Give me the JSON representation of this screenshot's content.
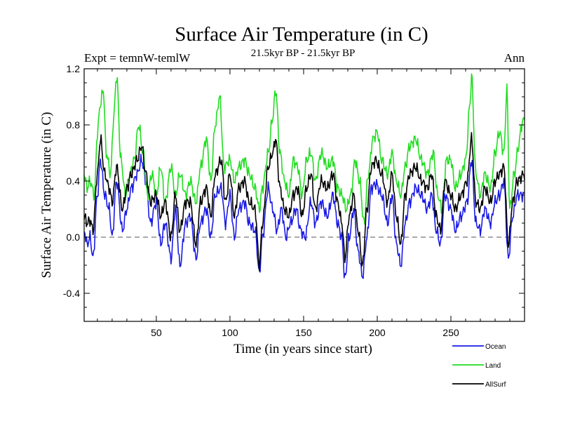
{
  "chart_data": {
    "type": "line",
    "title": "Surface Air Temperature (in C)",
    "subtitle_left": "Expt = temnW-temlW",
    "subtitle_center": "21.5kyr BP - 21.5kyr BP",
    "subtitle_right": "Ann",
    "xlabel": "Time (in years since start)",
    "ylabel": "Surface Air Temperature (in C)",
    "xlim": [
      1,
      300
    ],
    "ylim": [
      -0.6,
      1.2
    ],
    "x_ticks": [
      50,
      100,
      150,
      200,
      250
    ],
    "x_tick_labels": [
      "50",
      "100",
      "150",
      "200",
      "250"
    ],
    "y_ticks": [
      -0.4,
      0.0,
      0.4,
      0.8,
      1.2
    ],
    "y_tick_labels": [
      "-0.4",
      "0.0",
      "0.4",
      "0.8",
      "1.2"
    ],
    "reference_line": {
      "y": 0.0,
      "style": "dashed"
    },
    "legend_position": "bottom-right",
    "series": [
      {
        "name": "Ocean",
        "color": "#1a1ae6",
        "anchors": [
          [
            1,
            0.05
          ],
          [
            3,
            -0.05
          ],
          [
            5,
            0.0
          ],
          [
            7,
            -0.15
          ],
          [
            10,
            0.3
          ],
          [
            12,
            0.55
          ],
          [
            15,
            0.3
          ],
          [
            18,
            0.2
          ],
          [
            20,
            0.0
          ],
          [
            23,
            0.4
          ],
          [
            27,
            0.05
          ],
          [
            30,
            0.2
          ],
          [
            33,
            0.35
          ],
          [
            37,
            0.45
          ],
          [
            40,
            0.55
          ],
          [
            43,
            0.4
          ],
          [
            46,
            0.1
          ],
          [
            50,
            0.25
          ],
          [
            53,
            -0.05
          ],
          [
            56,
            0.1
          ],
          [
            60,
            -0.15
          ],
          [
            63,
            0.2
          ],
          [
            66,
            -0.2
          ],
          [
            70,
            0.1
          ],
          [
            73,
            0.15
          ],
          [
            77,
            -0.15
          ],
          [
            80,
            0.1
          ],
          [
            84,
            0.2
          ],
          [
            87,
            0.0
          ],
          [
            90,
            0.3
          ],
          [
            94,
            0.35
          ],
          [
            97,
            0.1
          ],
          [
            100,
            0.3
          ],
          [
            103,
            0.0
          ],
          [
            106,
            0.2
          ],
          [
            110,
            0.25
          ],
          [
            113,
            0.1
          ],
          [
            117,
            0.05
          ],
          [
            120,
            -0.25
          ],
          [
            122,
            0.0
          ],
          [
            126,
            0.35
          ],
          [
            129,
            0.2
          ],
          [
            132,
            0.05
          ],
          [
            135,
            0.2
          ],
          [
            138,
            0.0
          ],
          [
            141,
            0.1
          ],
          [
            145,
            0.2
          ],
          [
            148,
            0.05
          ],
          [
            151,
            0.0
          ],
          [
            155,
            0.25
          ],
          [
            158,
            0.1
          ],
          [
            162,
            0.25
          ],
          [
            166,
            0.15
          ],
          [
            170,
            0.3
          ],
          [
            173,
            0.1
          ],
          [
            176,
            0.0
          ],
          [
            178,
            -0.3
          ],
          [
            181,
            0.0
          ],
          [
            184,
            0.2
          ],
          [
            187,
            -0.1
          ],
          [
            190,
            -0.28
          ],
          [
            193,
            0.0
          ],
          [
            196,
            0.35
          ],
          [
            199,
            0.38
          ],
          [
            203,
            0.3
          ],
          [
            207,
            0.1
          ],
          [
            210,
            0.3
          ],
          [
            213,
            -0.05
          ],
          [
            216,
            -0.2
          ],
          [
            219,
            0.1
          ],
          [
            222,
            0.25
          ],
          [
            226,
            0.35
          ],
          [
            230,
            0.3
          ],
          [
            234,
            0.2
          ],
          [
            237,
            0.3
          ],
          [
            240,
            0.05
          ],
          [
            243,
            -0.05
          ],
          [
            246,
            0.3
          ],
          [
            250,
            0.2
          ],
          [
            253,
            0.05
          ],
          [
            257,
            0.15
          ],
          [
            261,
            0.25
          ],
          [
            264,
            0.55
          ],
          [
            267,
            0.1
          ],
          [
            270,
            0.05
          ],
          [
            273,
            0.2
          ],
          [
            277,
            0.1
          ],
          [
            280,
            0.25
          ],
          [
            283,
            0.3
          ],
          [
            286,
            0.4
          ],
          [
            289,
            -0.15
          ],
          [
            292,
            0.15
          ],
          [
            295,
            0.3
          ],
          [
            300,
            0.3
          ]
        ]
      },
      {
        "name": "Land",
        "color": "#22dd22",
        "anchors": [
          [
            1,
            0.45
          ],
          [
            3,
            0.35
          ],
          [
            5,
            0.4
          ],
          [
            8,
            0.3
          ],
          [
            10,
            0.75
          ],
          [
            12,
            0.95
          ],
          [
            14,
            1.05
          ],
          [
            16,
            0.6
          ],
          [
            19,
            0.45
          ],
          [
            21,
            0.85
          ],
          [
            23,
            1.15
          ],
          [
            26,
            0.55
          ],
          [
            29,
            0.3
          ],
          [
            32,
            0.45
          ],
          [
            35,
            0.55
          ],
          [
            38,
            0.8
          ],
          [
            41,
            0.6
          ],
          [
            44,
            0.3
          ],
          [
            47,
            0.45
          ],
          [
            50,
            0.3
          ],
          [
            53,
            0.5
          ],
          [
            56,
            0.25
          ],
          [
            60,
            0.5
          ],
          [
            63,
            0.3
          ],
          [
            66,
            0.45
          ],
          [
            70,
            0.3
          ],
          [
            73,
            0.4
          ],
          [
            77,
            0.25
          ],
          [
            80,
            0.5
          ],
          [
            84,
            0.7
          ],
          [
            87,
            0.4
          ],
          [
            90,
            0.8
          ],
          [
            93,
            1.0
          ],
          [
            96,
            0.5
          ],
          [
            100,
            0.55
          ],
          [
            103,
            0.4
          ],
          [
            106,
            0.5
          ],
          [
            110,
            0.55
          ],
          [
            113,
            0.45
          ],
          [
            117,
            0.35
          ],
          [
            120,
            0.2
          ],
          [
            122,
            0.35
          ],
          [
            126,
            0.6
          ],
          [
            129,
            0.85
          ],
          [
            131,
            1.05
          ],
          [
            134,
            0.6
          ],
          [
            137,
            0.4
          ],
          [
            140,
            0.3
          ],
          [
            143,
            0.55
          ],
          [
            146,
            0.5
          ],
          [
            149,
            0.3
          ],
          [
            152,
            0.55
          ],
          [
            155,
            0.6
          ],
          [
            158,
            0.4
          ],
          [
            162,
            0.6
          ],
          [
            166,
            0.5
          ],
          [
            170,
            0.55
          ],
          [
            173,
            0.35
          ],
          [
            176,
            0.3
          ],
          [
            179,
            0.2
          ],
          [
            182,
            0.3
          ],
          [
            185,
            0.55
          ],
          [
            188,
            0.4
          ],
          [
            191,
            0.1
          ],
          [
            194,
            0.45
          ],
          [
            197,
            0.7
          ],
          [
            200,
            0.75
          ],
          [
            203,
            0.55
          ],
          [
            207,
            0.45
          ],
          [
            210,
            0.6
          ],
          [
            213,
            0.4
          ],
          [
            216,
            0.3
          ],
          [
            219,
            0.5
          ],
          [
            222,
            0.65
          ],
          [
            226,
            0.7
          ],
          [
            230,
            0.55
          ],
          [
            234,
            0.45
          ],
          [
            238,
            0.6
          ],
          [
            241,
            0.3
          ],
          [
            244,
            0.2
          ],
          [
            247,
            0.55
          ],
          [
            250,
            0.55
          ],
          [
            253,
            0.35
          ],
          [
            257,
            0.45
          ],
          [
            260,
            0.55
          ],
          [
            263,
            0.95
          ],
          [
            264,
            1.15
          ],
          [
            267,
            0.45
          ],
          [
            270,
            0.3
          ],
          [
            273,
            0.45
          ],
          [
            277,
            0.35
          ],
          [
            280,
            0.6
          ],
          [
            283,
            0.75
          ],
          [
            286,
            0.6
          ],
          [
            288,
            1.05
          ],
          [
            290,
            0.2
          ],
          [
            293,
            0.45
          ],
          [
            296,
            0.65
          ],
          [
            298,
            0.8
          ],
          [
            300,
            0.85
          ]
        ]
      },
      {
        "name": "AllSurf",
        "color": "#000000",
        "anchors": [
          [
            1,
            0.15
          ],
          [
            3,
            0.1
          ],
          [
            5,
            0.12
          ],
          [
            7,
            0.05
          ],
          [
            10,
            0.45
          ],
          [
            12,
            0.7
          ],
          [
            15,
            0.45
          ],
          [
            18,
            0.35
          ],
          [
            20,
            0.25
          ],
          [
            23,
            0.5
          ],
          [
            27,
            0.2
          ],
          [
            30,
            0.35
          ],
          [
            33,
            0.45
          ],
          [
            37,
            0.55
          ],
          [
            40,
            0.65
          ],
          [
            43,
            0.45
          ],
          [
            46,
            0.25
          ],
          [
            50,
            0.3
          ],
          [
            53,
            0.15
          ],
          [
            56,
            0.25
          ],
          [
            60,
            0.0
          ],
          [
            63,
            0.3
          ],
          [
            66,
            0.05
          ],
          [
            70,
            0.25
          ],
          [
            73,
            0.25
          ],
          [
            77,
            -0.05
          ],
          [
            80,
            0.25
          ],
          [
            84,
            0.35
          ],
          [
            87,
            0.15
          ],
          [
            90,
            0.45
          ],
          [
            94,
            0.55
          ],
          [
            97,
            0.25
          ],
          [
            100,
            0.45
          ],
          [
            103,
            0.15
          ],
          [
            106,
            0.35
          ],
          [
            110,
            0.4
          ],
          [
            113,
            0.25
          ],
          [
            117,
            0.2
          ],
          [
            120,
            -0.2
          ],
          [
            122,
            0.1
          ],
          [
            126,
            0.5
          ],
          [
            129,
            0.6
          ],
          [
            131,
            0.7
          ],
          [
            134,
            0.35
          ],
          [
            137,
            0.2
          ],
          [
            140,
            0.15
          ],
          [
            143,
            0.3
          ],
          [
            146,
            0.35
          ],
          [
            149,
            0.15
          ],
          [
            152,
            0.35
          ],
          [
            155,
            0.45
          ],
          [
            158,
            0.2
          ],
          [
            162,
            0.4
          ],
          [
            166,
            0.35
          ],
          [
            170,
            0.45
          ],
          [
            173,
            0.25
          ],
          [
            176,
            0.1
          ],
          [
            178,
            -0.15
          ],
          [
            181,
            0.15
          ],
          [
            184,
            0.3
          ],
          [
            187,
            0.05
          ],
          [
            190,
            -0.2
          ],
          [
            193,
            0.2
          ],
          [
            196,
            0.5
          ],
          [
            199,
            0.55
          ],
          [
            203,
            0.45
          ],
          [
            207,
            0.25
          ],
          [
            210,
            0.45
          ],
          [
            213,
            0.15
          ],
          [
            216,
            -0.05
          ],
          [
            219,
            0.3
          ],
          [
            222,
            0.45
          ],
          [
            226,
            0.5
          ],
          [
            230,
            0.4
          ],
          [
            234,
            0.35
          ],
          [
            237,
            0.45
          ],
          [
            240,
            0.15
          ],
          [
            243,
            0.05
          ],
          [
            246,
            0.4
          ],
          [
            250,
            0.3
          ],
          [
            253,
            0.2
          ],
          [
            257,
            0.3
          ],
          [
            261,
            0.4
          ],
          [
            264,
            0.7
          ],
          [
            267,
            0.25
          ],
          [
            270,
            0.2
          ],
          [
            273,
            0.35
          ],
          [
            277,
            0.25
          ],
          [
            280,
            0.4
          ],
          [
            283,
            0.45
          ],
          [
            286,
            0.5
          ],
          [
            289,
            -0.05
          ],
          [
            292,
            0.25
          ],
          [
            295,
            0.4
          ],
          [
            300,
            0.45
          ]
        ]
      }
    ]
  }
}
